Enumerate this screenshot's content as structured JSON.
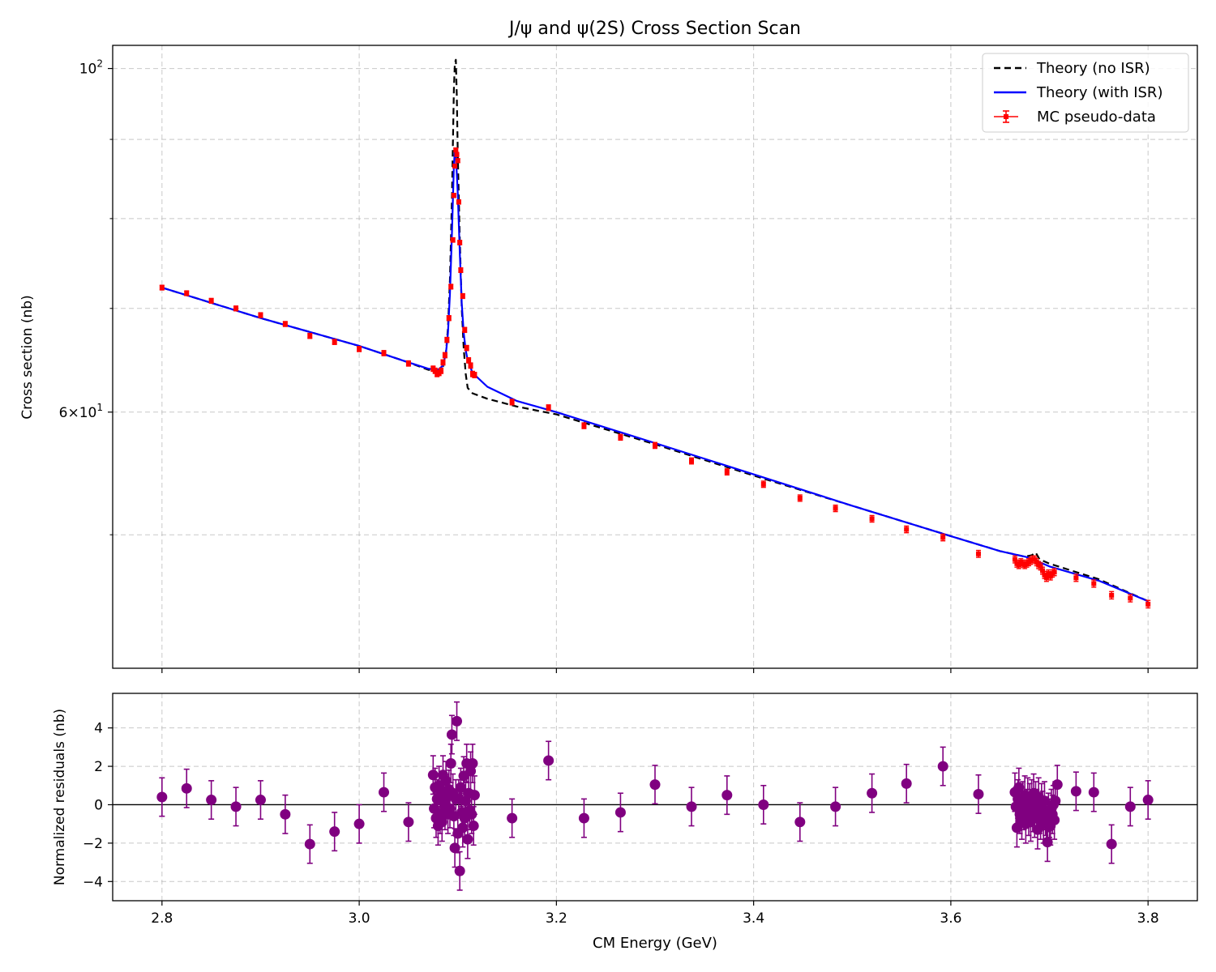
{
  "title": "J/ψ and ψ(2S) Cross Section Scan",
  "colors": {
    "data": "#ff0000",
    "theory_no_isr": "#000000",
    "theory_isr": "#0000ff",
    "residual": "#800080",
    "grid": "#b0b0b0"
  },
  "chart_data": [
    {
      "type": "line",
      "title": "J/ψ and ψ(2S) Cross Section Scan",
      "xlabel": "",
      "ylabel": "Cross section (nb)",
      "xlim": [
        2.75,
        3.85
      ],
      "ylim": [
        41.0,
        103.5
      ],
      "yscale": "log",
      "y_ticks": [
        {
          "value": 100,
          "label": "10",
          "sup": "2"
        },
        {
          "value": 60,
          "label": "6×10",
          "sup": "1"
        }
      ],
      "y_minor_ticks": [
        50,
        70,
        80,
        90
      ],
      "grid": true,
      "legend_position": "top-right",
      "series": [
        {
          "name": "Theory (no ISR)",
          "style": "dashed",
          "x": [
            2.8,
            2.9,
            3.0,
            3.05,
            3.07,
            3.08,
            3.085,
            3.088,
            3.09,
            3.092,
            3.094,
            3.095,
            3.096,
            3.097,
            3.098,
            3.099,
            3.1,
            3.102,
            3.104,
            3.106,
            3.108,
            3.11,
            3.115,
            3.13,
            3.16,
            3.2,
            3.3,
            3.4,
            3.5,
            3.6,
            3.65,
            3.675,
            3.682,
            3.686,
            3.69,
            3.7,
            3.75,
            3.8
          ],
          "y": [
            72.2,
            69.0,
            66.2,
            64.6,
            63.9,
            63.8,
            64.2,
            65.5,
            68.0,
            73.0,
            82.0,
            89.0,
            97.0,
            100.8,
            101.3,
            96.0,
            88.0,
            77.5,
            70.0,
            66.0,
            63.5,
            62.2,
            61.7,
            61.2,
            60.5,
            59.8,
            57.2,
            54.6,
            52.2,
            49.9,
            48.8,
            48.4,
            48.5,
            48.7,
            48.2,
            47.9,
            46.8,
            45.3
          ]
        },
        {
          "name": "Theory (with ISR)",
          "style": "solid",
          "x": [
            2.8,
            2.9,
            3.0,
            3.05,
            3.07,
            3.08,
            3.085,
            3.088,
            3.09,
            3.092,
            3.094,
            3.096,
            3.097,
            3.098,
            3.1,
            3.102,
            3.104,
            3.106,
            3.108,
            3.11,
            3.115,
            3.13,
            3.16,
            3.2,
            3.3,
            3.4,
            3.5,
            3.6,
            3.65,
            3.675,
            3.686,
            3.69,
            3.7,
            3.75,
            3.8
          ],
          "y": [
            72.2,
            69.0,
            66.2,
            64.6,
            64.0,
            63.9,
            64.3,
            65.5,
            67.5,
            71.5,
            78.0,
            86.5,
            88.5,
            88.0,
            83.0,
            76.0,
            70.5,
            67.5,
            65.8,
            64.8,
            63.6,
            62.3,
            61.0,
            60.0,
            57.3,
            54.7,
            52.2,
            49.9,
            48.8,
            48.4,
            48.2,
            48.0,
            47.7,
            46.7,
            45.3
          ]
        },
        {
          "name": "MC pseudo-data",
          "style": "errorbar",
          "x": [
            2.8,
            2.825,
            2.85,
            2.875,
            2.9,
            2.925,
            2.95,
            2.975,
            3.0,
            3.025,
            3.05,
            3.075,
            3.077,
            3.079,
            3.081,
            3.083,
            3.085,
            3.087,
            3.089,
            3.091,
            3.093,
            3.095,
            3.096,
            3.097,
            3.098,
            3.099,
            3.1,
            3.101,
            3.102,
            3.103,
            3.105,
            3.107,
            3.109,
            3.111,
            3.113,
            3.115,
            3.117,
            3.155,
            3.192,
            3.228,
            3.265,
            3.3,
            3.337,
            3.373,
            3.41,
            3.447,
            3.483,
            3.52,
            3.555,
            3.592,
            3.628,
            3.665,
            3.667,
            3.669,
            3.671,
            3.673,
            3.675,
            3.677,
            3.679,
            3.681,
            3.683,
            3.685,
            3.687,
            3.689,
            3.691,
            3.693,
            3.695,
            3.697,
            3.699,
            3.701,
            3.703,
            3.705,
            3.727,
            3.745,
            3.763,
            3.782,
            3.8
          ],
          "y": [
            72.2,
            71.6,
            70.8,
            70.0,
            69.3,
            68.4,
            67.2,
            66.6,
            65.9,
            65.5,
            64.5,
            64.0,
            63.8,
            63.5,
            63.6,
            63.8,
            64.6,
            65.3,
            66.8,
            69.0,
            72.3,
            77.5,
            82.8,
            86.5,
            88.6,
            88.0,
            87.2,
            82.0,
            77.2,
            74.1,
            71.3,
            67.8,
            66.0,
            64.8,
            64.3,
            63.5,
            63.4,
            60.9,
            60.4,
            58.8,
            57.8,
            57.1,
            55.8,
            54.9,
            53.9,
            52.8,
            52.0,
            51.2,
            50.4,
            49.8,
            48.6,
            48.2,
            47.9,
            47.8,
            48.0,
            47.9,
            47.8,
            47.9,
            48.0,
            48.1,
            48.2,
            48.2,
            48.0,
            47.8,
            47.7,
            47.4,
            47.1,
            46.9,
            47.2,
            47.0,
            47.2,
            47.3,
            46.9,
            46.5,
            45.7,
            45.5,
            45.1
          ],
          "yerr": 0.25
        }
      ]
    },
    {
      "type": "scatter",
      "title": "",
      "xlabel": "CM Energy (GeV)",
      "ylabel": "Normalized residuals (nb)",
      "xlim": [
        2.75,
        3.85
      ],
      "ylim": [
        -5.0,
        5.8
      ],
      "x_ticks": [
        2.8,
        3.0,
        3.2,
        3.4,
        3.6,
        3.8
      ],
      "x_tick_labels": [
        "2.8",
        "3.0",
        "3.2",
        "3.4",
        "3.6",
        "3.8"
      ],
      "y_ticks": [
        -4,
        -2,
        0,
        2,
        4
      ],
      "y_tick_labels": [
        "−4",
        "−2",
        "0",
        "2",
        "4"
      ],
      "grid": true,
      "reference_line": 0,
      "series": [
        {
          "style": "errorbar",
          "x": [
            2.8,
            2.825,
            2.85,
            2.875,
            2.9,
            2.925,
            2.95,
            2.975,
            3.0,
            3.025,
            3.05,
            3.075,
            3.076,
            3.077,
            3.078,
            3.079,
            3.08,
            3.081,
            3.082,
            3.083,
            3.084,
            3.085,
            3.086,
            3.087,
            3.088,
            3.089,
            3.09,
            3.091,
            3.092,
            3.093,
            3.094,
            3.095,
            3.096,
            3.097,
            3.098,
            3.099,
            3.1,
            3.101,
            3.102,
            3.103,
            3.104,
            3.105,
            3.106,
            3.107,
            3.108,
            3.109,
            3.11,
            3.111,
            3.112,
            3.113,
            3.114,
            3.115,
            3.116,
            3.117,
            3.155,
            3.192,
            3.228,
            3.265,
            3.3,
            3.337,
            3.373,
            3.41,
            3.447,
            3.483,
            3.52,
            3.555,
            3.592,
            3.628,
            3.665,
            3.666,
            3.667,
            3.668,
            3.669,
            3.67,
            3.671,
            3.672,
            3.673,
            3.674,
            3.675,
            3.676,
            3.677,
            3.678,
            3.679,
            3.68,
            3.681,
            3.682,
            3.683,
            3.684,
            3.685,
            3.686,
            3.687,
            3.688,
            3.689,
            3.69,
            3.691,
            3.692,
            3.693,
            3.694,
            3.695,
            3.696,
            3.697,
            3.698,
            3.699,
            3.7,
            3.701,
            3.702,
            3.703,
            3.704,
            3.705,
            3.706,
            3.708,
            3.727,
            3.745,
            3.763,
            3.782,
            3.8
          ],
          "y": [
            0.4,
            0.85,
            0.25,
            -0.1,
            0.25,
            -0.5,
            -2.05,
            -1.4,
            -1.0,
            0.65,
            -0.9,
            1.55,
            -0.2,
            0.9,
            -0.7,
            0.3,
            -1.1,
            1.0,
            -0.5,
            0.6,
            -0.9,
            1.55,
            0.1,
            -0.3,
            1.25,
            0.4,
            -0.5,
            0.8,
            -0.2,
            2.15,
            3.65,
            0.6,
            -0.6,
            -2.25,
            0.3,
            4.35,
            -1.5,
            0.3,
            -3.45,
            0.9,
            -0.4,
            -1.2,
            1.5,
            -0.7,
            0.2,
            2.15,
            -1.8,
            0.6,
            -0.3,
            1.75,
            -0.5,
            2.15,
            -1.1,
            0.5,
            -0.7,
            2.3,
            -0.7,
            -0.4,
            1.05,
            -0.1,
            0.5,
            0.0,
            -0.9,
            -0.1,
            0.6,
            1.1,
            2.0,
            0.55,
            0.65,
            -0.1,
            -1.2,
            0.3,
            0.9,
            -0.5,
            0.1,
            -0.8,
            0.2,
            -0.3,
            0.5,
            -1.0,
            -0.2,
            0.4,
            -0.6,
            0.1,
            -0.9,
            0.3,
            -0.4,
            0.6,
            -0.7,
            0.2,
            -0.2,
            -1.3,
            0.4,
            -0.5,
            -0.8,
            0.1,
            -0.3,
            -1.0,
            0.2,
            -0.6,
            -0.9,
            -1.95,
            -0.4,
            -0.7,
            -1.1,
            -0.2,
            -0.5,
            0.0,
            -0.8,
            0.2,
            1.05,
            0.7,
            0.65,
            -2.05,
            -0.1,
            0.25
          ],
          "yerr": 1.0
        }
      ]
    }
  ]
}
